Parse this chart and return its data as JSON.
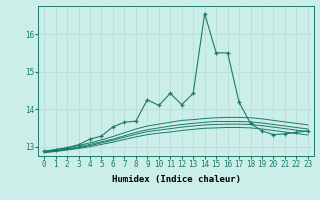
{
  "xlabel": "Humidex (Indice chaleur)",
  "ylabel": "",
  "xlim": [
    -0.5,
    23.5
  ],
  "ylim": [
    12.75,
    16.75
  ],
  "bg_color": "#cceee8",
  "line_color": "#1a7a6a",
  "grid_color": "#b8ddd8",
  "series": {
    "main": [
      12.88,
      12.92,
      12.97,
      13.05,
      13.2,
      13.28,
      13.53,
      13.65,
      13.68,
      14.25,
      14.1,
      14.42,
      14.12,
      14.42,
      16.55,
      15.5,
      15.5,
      14.18,
      13.62,
      13.42,
      13.32,
      13.34,
      13.38,
      13.42
    ],
    "line2": [
      12.87,
      12.92,
      12.97,
      13.03,
      13.1,
      13.18,
      13.27,
      13.37,
      13.47,
      13.55,
      13.6,
      13.65,
      13.7,
      13.72,
      13.75,
      13.77,
      13.78,
      13.78,
      13.77,
      13.74,
      13.7,
      13.66,
      13.62,
      13.58
    ],
    "line3": [
      12.86,
      12.9,
      12.94,
      12.99,
      13.06,
      13.13,
      13.2,
      13.29,
      13.38,
      13.45,
      13.5,
      13.55,
      13.59,
      13.62,
      13.65,
      13.67,
      13.67,
      13.67,
      13.66,
      13.63,
      13.59,
      13.55,
      13.51,
      13.47
    ],
    "line4": [
      12.85,
      12.88,
      12.93,
      12.97,
      13.03,
      13.1,
      13.17,
      13.25,
      13.33,
      13.4,
      13.44,
      13.48,
      13.52,
      13.55,
      13.58,
      13.59,
      13.6,
      13.6,
      13.59,
      13.56,
      13.52,
      13.48,
      13.44,
      13.4
    ],
    "line5": [
      12.84,
      12.87,
      12.91,
      12.95,
      13.0,
      13.06,
      13.12,
      13.19,
      13.26,
      13.32,
      13.36,
      13.39,
      13.43,
      13.46,
      13.49,
      13.5,
      13.51,
      13.51,
      13.5,
      13.47,
      13.43,
      13.39,
      13.35,
      13.31
    ]
  },
  "xtick_labels": [
    "0",
    "1",
    "2",
    "3",
    "4",
    "5",
    "6",
    "7",
    "8",
    "9",
    "10",
    "11",
    "12",
    "13",
    "14",
    "15",
    "16",
    "17",
    "18",
    "19",
    "20",
    "21",
    "22",
    "23"
  ],
  "yticks": [
    13,
    14,
    15,
    16
  ],
  "tick_fontsize": 5.5,
  "axis_fontsize": 6.5
}
